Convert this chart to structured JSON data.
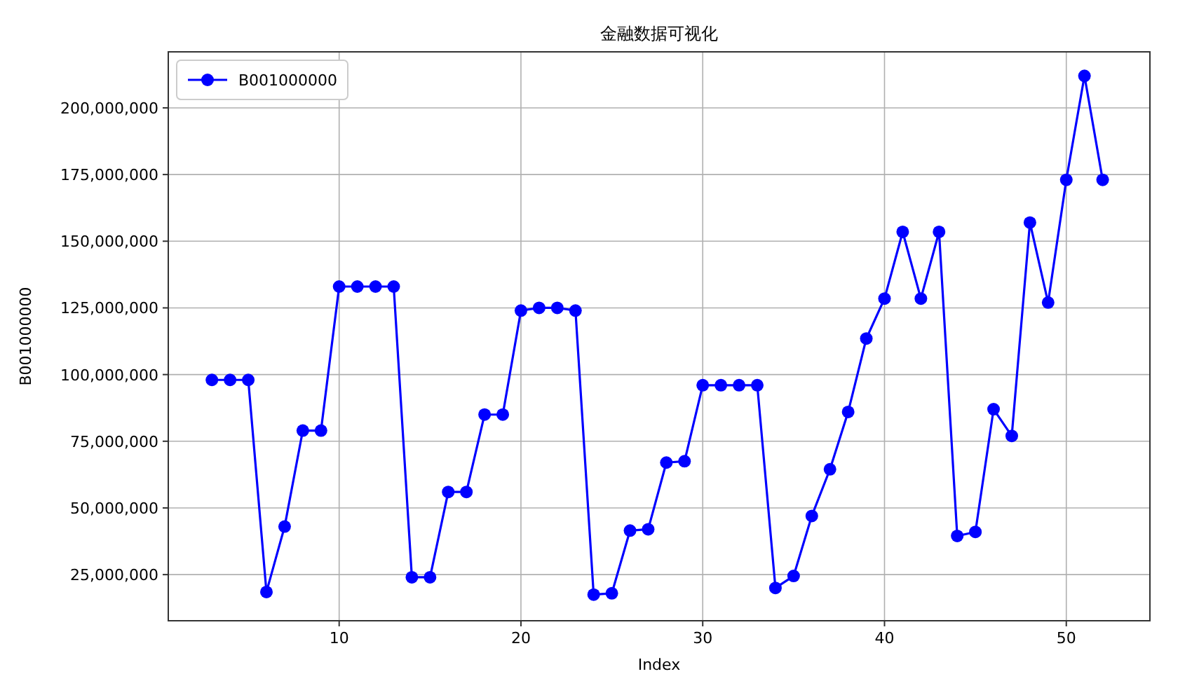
{
  "chart_data": {
    "type": "line",
    "title": "金融数据可视化",
    "xlabel": "Index",
    "ylabel": "B001000000",
    "x": [
      3,
      4,
      5,
      6,
      7,
      8,
      9,
      10,
      11,
      12,
      13,
      14,
      15,
      16,
      17,
      18,
      19,
      20,
      21,
      22,
      23,
      24,
      25,
      26,
      27,
      28,
      29,
      30,
      31,
      32,
      33,
      34,
      35,
      36,
      37,
      38,
      39,
      40,
      41,
      42,
      43,
      44,
      45,
      46,
      47,
      48,
      49,
      50,
      51,
      52
    ],
    "series": [
      {
        "name": "B001000000",
        "color": "#0000ff",
        "values": [
          98000000,
          98000000,
          98000000,
          18500000,
          43000000,
          79000000,
          79000000,
          133000000,
          133000000,
          133000000,
          133000000,
          24000000,
          24000000,
          56000000,
          56000000,
          85000000,
          85000000,
          124000000,
          125000000,
          125000000,
          124000000,
          17500000,
          18000000,
          41500000,
          42000000,
          67000000,
          67500000,
          96000000,
          96000000,
          96000000,
          96000000,
          20000000,
          24500000,
          47000000,
          64500000,
          86000000,
          113500000,
          128500000,
          153500000,
          128500000,
          153500000,
          39500000,
          41000000,
          87000000,
          77000000,
          157000000,
          127000000,
          173000000,
          212000000,
          173000000
        ]
      }
    ],
    "xlim": [
      0.6,
      54.6
    ],
    "xticks": [
      10,
      20,
      30,
      40,
      50
    ],
    "ylim": [
      7700000,
      221000000
    ],
    "yticks": [
      {
        "value": 25000000,
        "label": "25,000,000"
      },
      {
        "value": 50000000,
        "label": "50,000,000"
      },
      {
        "value": 75000000,
        "label": "75,000,000"
      },
      {
        "value": 100000000,
        "label": "100,000,000"
      },
      {
        "value": 125000000,
        "label": "125,000,000"
      },
      {
        "value": 150000000,
        "label": "150,000,000"
      },
      {
        "value": 175000000,
        "label": "175,000,000"
      },
      {
        "value": 200000000,
        "label": "200,000,000"
      }
    ],
    "grid": true,
    "legend": "top left",
    "marker": "circle",
    "line_style": "solid"
  }
}
